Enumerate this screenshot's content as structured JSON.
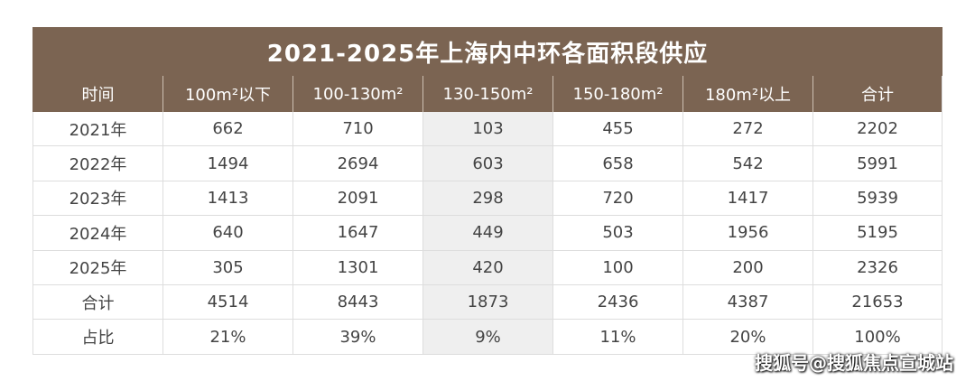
{
  "table": {
    "title": "2021-2025年上海内中环各面积段供应",
    "headers": [
      "时间",
      "100m²以下",
      "100-130m²",
      "130-150m²",
      "150-180m²",
      "180m²以上",
      "合计"
    ],
    "rows": [
      [
        "2021年",
        "662",
        "710",
        "103",
        "455",
        "272",
        "2202"
      ],
      [
        "2022年",
        "1494",
        "2694",
        "603",
        "658",
        "542",
        "5991"
      ],
      [
        "2023年",
        "1413",
        "2091",
        "298",
        "720",
        "1417",
        "5939"
      ],
      [
        "2024年",
        "640",
        "1647",
        "449",
        "503",
        "1956",
        "5195"
      ],
      [
        "2025年",
        "305",
        "1301",
        "420",
        "100",
        "200",
        "2326"
      ],
      [
        "合计",
        "4514",
        "8443",
        "1873",
        "2436",
        "4387",
        "21653"
      ],
      [
        "占比",
        "21%",
        "39%",
        "9%",
        "11%",
        "20%",
        "100%"
      ]
    ],
    "highlight_column": 3
  },
  "watermark": "搜狐号@搜狐焦点宣城站"
}
